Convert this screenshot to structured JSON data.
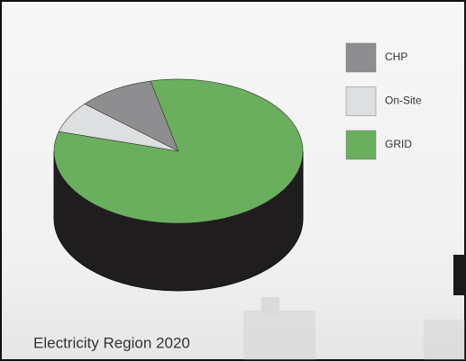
{
  "chart_data": {
    "type": "pie",
    "title": "Electricity Region 2020",
    "categories": [
      "CHP",
      "On-Site",
      "GRID"
    ],
    "values": [
      10,
      7,
      83
    ],
    "colors": [
      "#8e8e91",
      "#dedfe0",
      "#6aaf5d"
    ],
    "legend": "right"
  }
}
